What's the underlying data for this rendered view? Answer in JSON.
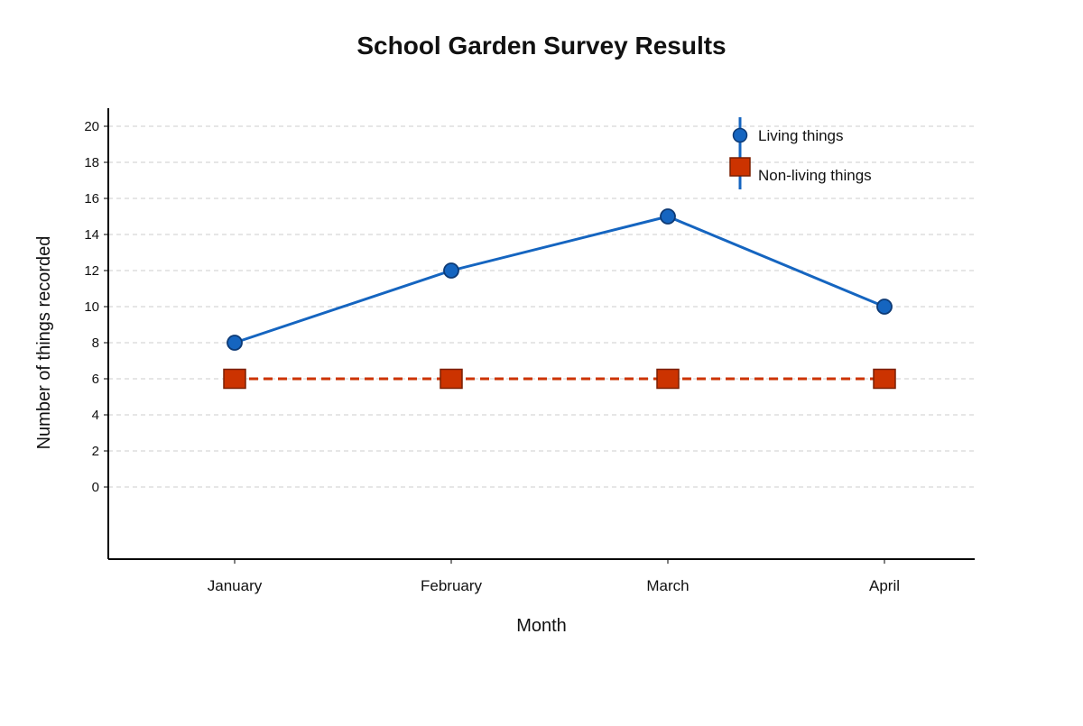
{
  "chart_data": {
    "type": "line",
    "title": "School Garden Survey Results",
    "xlabel": "Month",
    "ylabel": "Number of things recorded",
    "categories": [
      "January",
      "February",
      "March",
      "April"
    ],
    "series": [
      {
        "name": "Living things",
        "values": [
          8,
          12,
          15,
          10
        ],
        "color": "#1565C0",
        "marker": "circle",
        "line_style": "solid"
      },
      {
        "name": "Non-living things",
        "values": [
          6,
          6,
          6,
          6
        ],
        "color": "#CC3300",
        "marker": "square",
        "line_style": "dashed"
      }
    ],
    "ylim": [
      -4,
      21
    ],
    "yticks": [
      0,
      2,
      4,
      6,
      8,
      10,
      12,
      14,
      16,
      18,
      20
    ],
    "grid": true,
    "legend_position": "top-right"
  }
}
